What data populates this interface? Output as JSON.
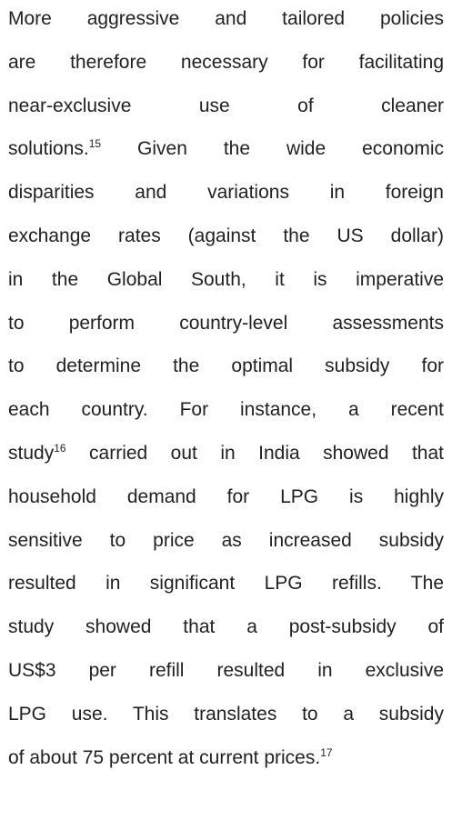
{
  "paragraph": {
    "lines": [
      [
        {
          "text": "More aggressive and tailored policies"
        }
      ],
      [
        {
          "text": "are therefore necessary for facilitating"
        }
      ],
      [
        {
          "text": "near-exclusive use of cleaner"
        }
      ],
      [
        {
          "text": "solutions."
        },
        {
          "sup": "15"
        },
        {
          "text": " Given the wide economic"
        }
      ],
      [
        {
          "text": "disparities and variations in foreign"
        }
      ],
      [
        {
          "text": "exchange rates (against the US dollar)"
        }
      ],
      [
        {
          "text": "in the Global South, it is imperative"
        }
      ],
      [
        {
          "text": "to perform country-level assessments"
        }
      ],
      [
        {
          "text": "to determine the optimal subsidy for"
        }
      ],
      [
        {
          "text": "each country. For instance, a recent"
        }
      ],
      [
        {
          "text": "study"
        },
        {
          "sup": "16"
        },
        {
          "text": " carried out in India showed that"
        }
      ],
      [
        {
          "text": "household demand for LPG is highly"
        }
      ],
      [
        {
          "text": "sensitive to price as increased subsidy"
        }
      ],
      [
        {
          "text": "resulted in significant LPG refills. The"
        }
      ],
      [
        {
          "text": "study showed that a post-subsidy of"
        }
      ],
      [
        {
          "text": "US$3 per refill resulted in exclusive"
        }
      ],
      [
        {
          "text": "LPG use. This translates to a subsidy"
        }
      ],
      [
        {
          "text": "of about 75 percent at current prices."
        },
        {
          "sup": "17"
        }
      ]
    ]
  }
}
